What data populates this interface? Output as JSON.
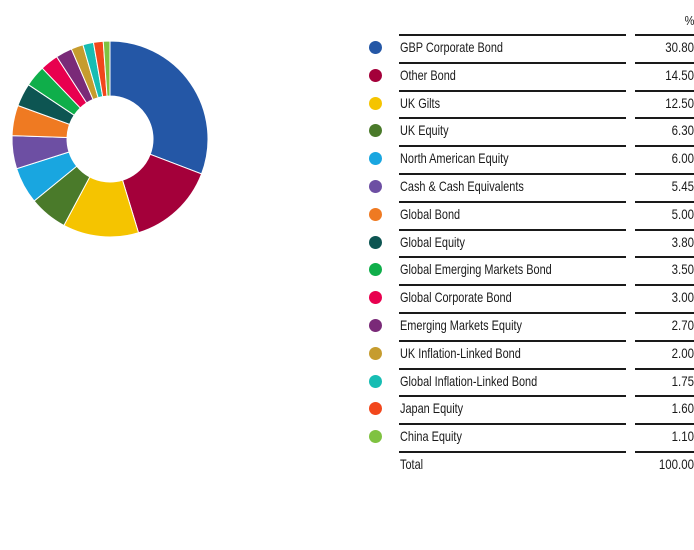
{
  "chart_data": {
    "type": "pie",
    "style": "donut",
    "unit_header": "%",
    "categories": [
      "GBP Corporate Bond",
      "Other Bond",
      "UK Gilts",
      "UK Equity",
      "North American Equity",
      "Cash & Cash Equivalents",
      "Global Bond",
      "Global Equity",
      "Global Emerging Markets Bond",
      "Global Corporate Bond",
      "Emerging Markets Equity",
      "UK Inflation-Linked Bond",
      "Global Inflation-Linked Bond",
      "Japan Equity",
      "China Equity"
    ],
    "values": [
      30.8,
      14.5,
      12.5,
      6.3,
      6.0,
      5.45,
      5.0,
      3.8,
      3.5,
      3.0,
      2.7,
      2.0,
      1.75,
      1.6,
      1.1
    ],
    "value_labels": [
      "30.80",
      "14.50",
      "12.50",
      "6.30",
      "6.00",
      "5.45",
      "5.00",
      "3.80",
      "3.50",
      "3.00",
      "2.70",
      "2.00",
      "1.75",
      "1.60",
      "1.10"
    ],
    "colors": [
      "#2457a6",
      "#a4003a",
      "#f5c400",
      "#4a7a2a",
      "#19a6e0",
      "#6d4fa3",
      "#ef7a22",
      "#0d5552",
      "#0fae4a",
      "#e8004f",
      "#7a2a78",
      "#c69c2e",
      "#17bdb3",
      "#f2471c",
      "#7fc241"
    ],
    "total_label": "Total",
    "total_value": "100.00",
    "legend_position": "right"
  }
}
